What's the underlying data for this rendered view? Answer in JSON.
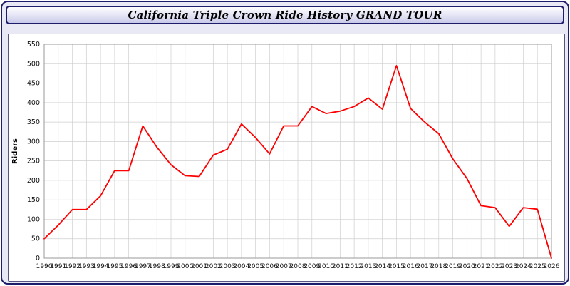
{
  "header": {
    "title": "California Triple Crown Ride History GRAND TOUR"
  },
  "chart_data": {
    "type": "line",
    "title": "California Triple Crown Ride History GRAND TOUR",
    "xlabel": "",
    "ylabel": "Riders",
    "ylim": [
      0,
      550
    ],
    "ytick_step": 50,
    "grid": true,
    "legend_position": "none",
    "line_color": "#ff0000",
    "grid_color": "#cfcfcf",
    "categories": [
      1990,
      1991,
      1992,
      1993,
      1994,
      1995,
      1996,
      1997,
      1998,
      1999,
      2000,
      2001,
      2002,
      2003,
      2004,
      2005,
      2006,
      2007,
      2008,
      2009,
      2010,
      2011,
      2012,
      2013,
      2014,
      2015,
      2016,
      2017,
      2018,
      2019,
      2020,
      2021,
      2022,
      2023,
      2024,
      2025,
      2026
    ],
    "values": [
      50,
      85,
      125,
      125,
      160,
      225,
      225,
      340,
      285,
      240,
      212,
      210,
      265,
      280,
      345,
      310,
      268,
      340,
      340,
      390,
      372,
      378,
      390,
      412,
      383,
      495,
      385,
      350,
      320,
      255,
      205,
      135,
      130,
      82,
      130,
      126,
      0
    ]
  }
}
